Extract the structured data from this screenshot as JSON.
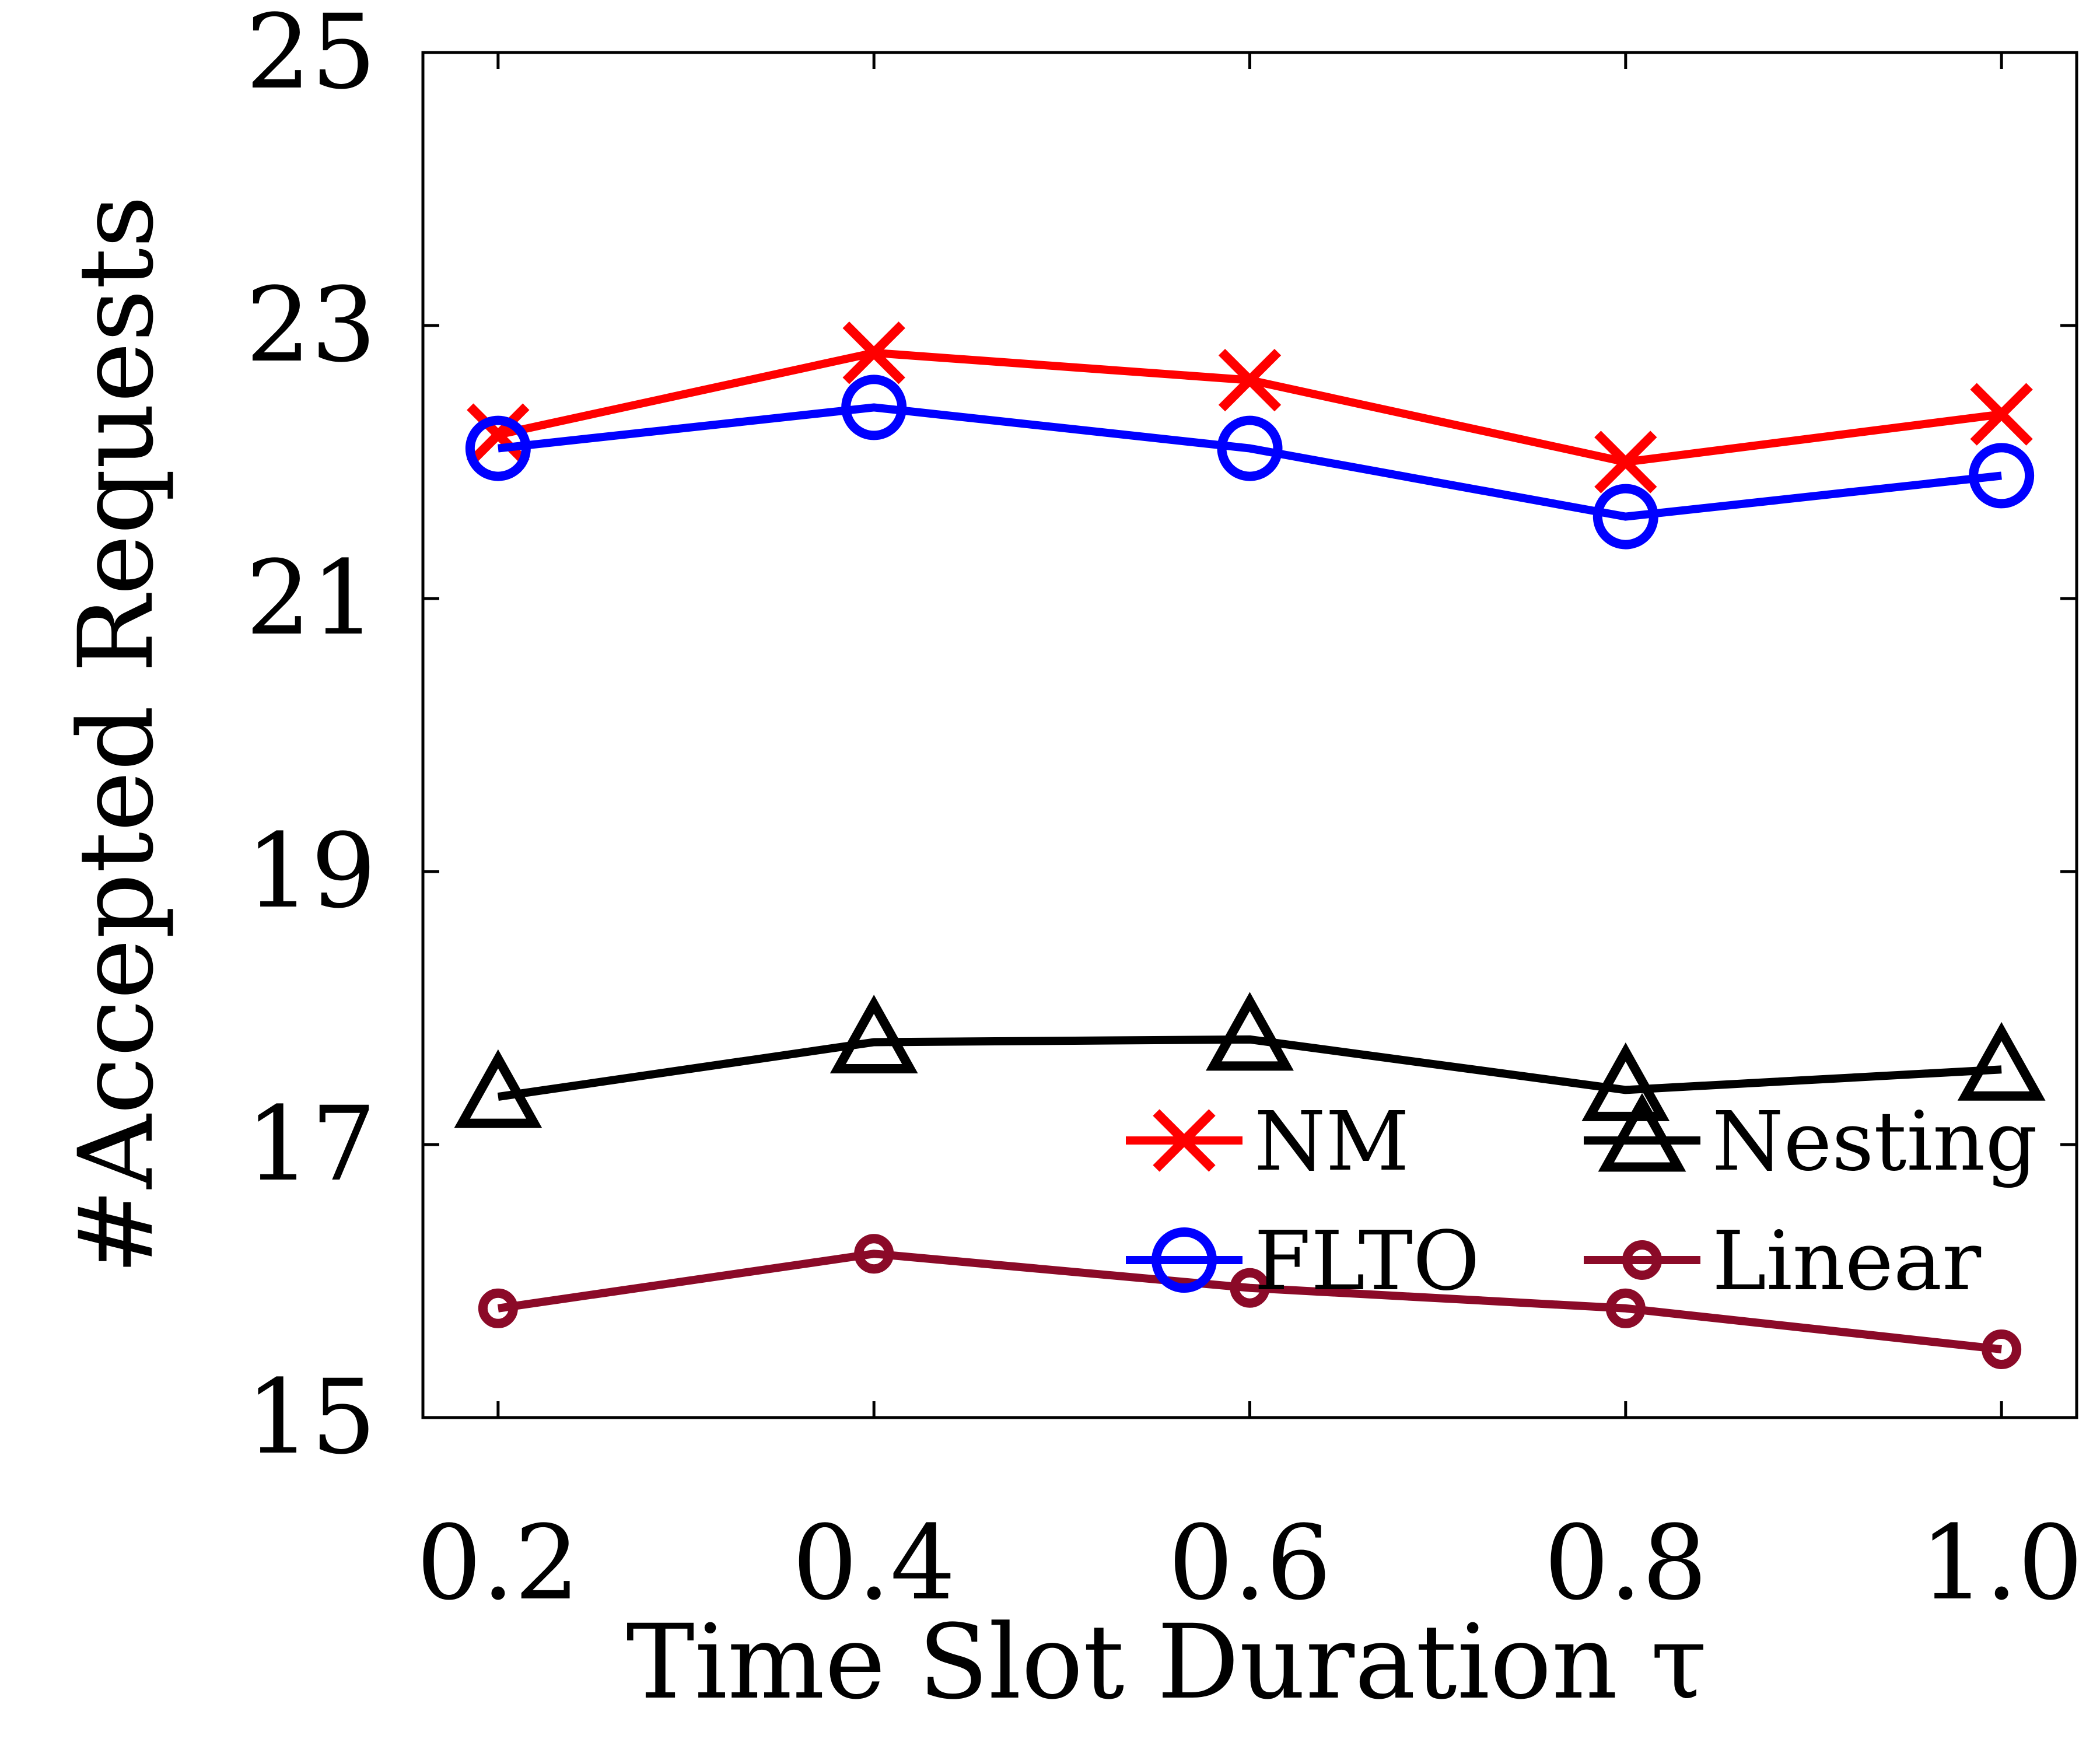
{
  "chart_data": {
    "type": "line",
    "xlabel": "Time Slot Duration τ",
    "ylabel": "#Accepted Requests",
    "x": [
      0.2,
      0.4,
      0.6,
      0.8,
      1.0
    ],
    "x_tick_labels": [
      "0.2",
      "0.4",
      "0.6",
      "0.8",
      "1.0"
    ],
    "y_ticks": [
      15,
      17,
      19,
      21,
      23,
      25
    ],
    "y_tick_labels": [
      "15",
      "17",
      "19",
      "21",
      "23",
      "25"
    ],
    "xlim": [
      0.16,
      1.04
    ],
    "ylim": [
      15,
      25
    ],
    "grid": false,
    "legend_position": "lower-right",
    "series": [
      {
        "name": "NM",
        "values": [
          22.2,
          22.8,
          22.6,
          22.0,
          22.35
        ],
        "color": "#ff0000",
        "marker": "x"
      },
      {
        "name": "FLTO",
        "values": [
          22.1,
          22.4,
          22.1,
          21.6,
          21.9
        ],
        "color": "#0000ff",
        "marker": "circle"
      },
      {
        "name": "Nesting",
        "values": [
          17.35,
          17.75,
          17.77,
          17.4,
          17.55
        ],
        "color": "#000000",
        "marker": "triangle"
      },
      {
        "name": "Linear",
        "values": [
          15.8,
          16.2,
          15.95,
          15.8,
          15.5
        ],
        "color": "#8b0a28",
        "marker": "small-circle"
      }
    ]
  }
}
